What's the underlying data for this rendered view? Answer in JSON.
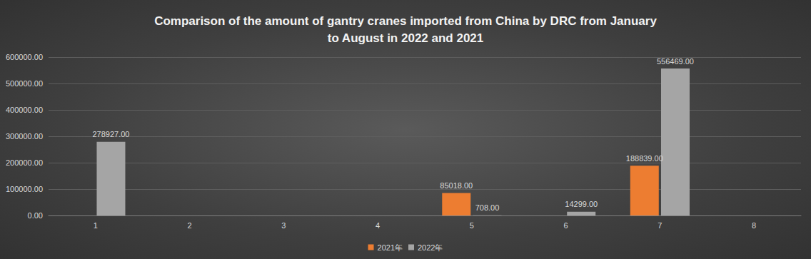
{
  "chart_data": {
    "type": "bar",
    "title": "Comparison of the amount of gantry cranes imported from China by DRC from January\nto August in 2022 and 2021",
    "categories": [
      "1",
      "2",
      "3",
      "4",
      "5",
      "6",
      "7",
      "8"
    ],
    "series": [
      {
        "name": "2021年",
        "color": "#ed7d31",
        "values": [
          null,
          null,
          null,
          null,
          85018,
          null,
          188839,
          null
        ],
        "value_labels": [
          null,
          null,
          null,
          null,
          "85018.00",
          null,
          "188839.00",
          null
        ]
      },
      {
        "name": "2022年",
        "color": "#a5a5a5",
        "values": [
          278927,
          null,
          null,
          null,
          708,
          14299,
          556469,
          null
        ],
        "value_labels": [
          "278927.00",
          null,
          null,
          null,
          "708.00",
          "14299.00",
          "556469.00",
          null
        ]
      }
    ],
    "ylim": [
      0,
      600000
    ],
    "yticks": [
      {
        "value": 0,
        "label": "0.00"
      },
      {
        "value": 100000,
        "label": "100000.00"
      },
      {
        "value": 200000,
        "label": "200000.00"
      },
      {
        "value": 300000,
        "label": "300000.00"
      },
      {
        "value": 400000,
        "label": "400000.00"
      },
      {
        "value": 500000,
        "label": "500000.00"
      },
      {
        "value": 600000,
        "label": "600000.00"
      }
    ],
    "grid": true,
    "legend": "bottom",
    "data_labels": true
  }
}
